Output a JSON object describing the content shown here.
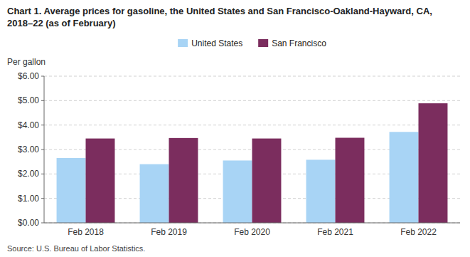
{
  "chart_data": {
    "type": "bar",
    "title": "Chart 1. Average prices for gasoline, the United States and San Francisco-Oakland-Hayward, CA, 2018–22 (as of February)",
    "y_label": "Per gallon",
    "source": "Source: U.S. Bureau of Labor Statistics.",
    "categories": [
      "Feb 2018",
      "Feb 2019",
      "Feb 2020",
      "Feb 2021",
      "Feb 2022"
    ],
    "series": [
      {
        "name": "United States",
        "color": "#a8d4f5",
        "values": [
          2.65,
          2.4,
          2.55,
          2.58,
          3.72
        ]
      },
      {
        "name": "San Francisco",
        "color": "#7b2d5e",
        "values": [
          3.45,
          3.47,
          3.45,
          3.48,
          4.89
        ]
      }
    ],
    "ylim": [
      0,
      6.0
    ],
    "yticks": [
      {
        "value": 0.0,
        "label": "$0.00"
      },
      {
        "value": 1.0,
        "label": "$1.00"
      },
      {
        "value": 2.0,
        "label": "$2.00"
      },
      {
        "value": 3.0,
        "label": "$3.00"
      },
      {
        "value": 4.0,
        "label": "$4.00"
      },
      {
        "value": 5.0,
        "label": "$5.00"
      },
      {
        "value": 6.0,
        "label": "$6.00"
      }
    ],
    "grid": true,
    "legend": "top"
  }
}
